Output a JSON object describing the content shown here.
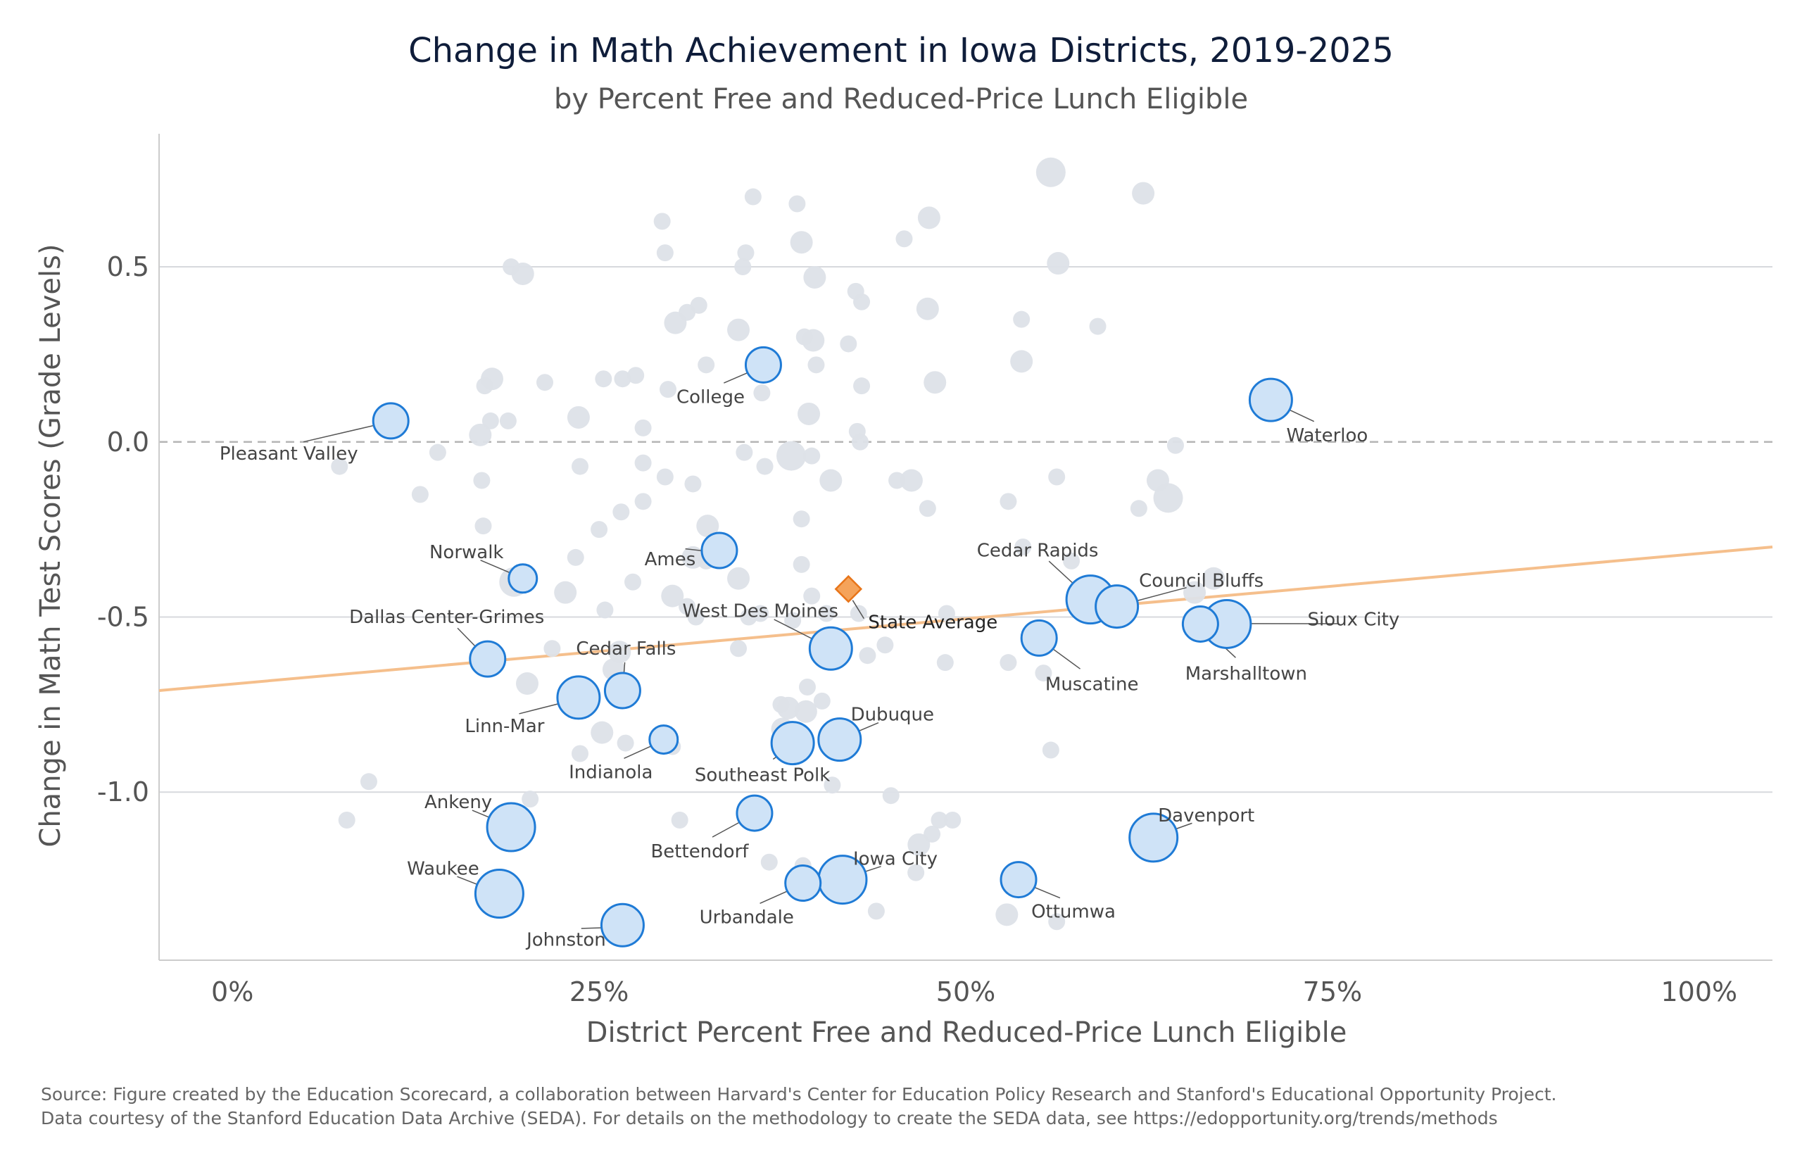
{
  "chart_data": {
    "type": "scatter",
    "title": "Change in Math Achievement in Iowa Districts, 2019-2025",
    "subtitle": "by Percent Free and Reduced-Price Lunch Eligible",
    "xlabel": "District Percent Free and Reduced-Price Lunch Eligible",
    "ylabel": "Change in Math Test Scores (Grade Levels)",
    "xlim": [
      -5,
      105
    ],
    "ylim": [
      -1.48,
      0.88
    ],
    "x_ticks": [
      0,
      25,
      50,
      75,
      100
    ],
    "x_tick_labels": [
      "0%",
      "25%",
      "50%",
      "75%",
      "100%"
    ],
    "y_ticks": [
      -1.0,
      -0.5,
      0.0,
      0.5
    ],
    "y_tick_labels": [
      "-1.0",
      "-0.5",
      "0.0",
      "0.5"
    ],
    "grid": "horizontal",
    "reference_line_y": 0,
    "trend_line": {
      "x": [
        -5,
        105
      ],
      "y": [
        -0.71,
        -0.3
      ]
    },
    "state_average": {
      "label": "State Average",
      "x": 42,
      "y": -0.42
    },
    "highlighted_series": [
      {
        "label": "Pleasant Valley",
        "x": 10.8,
        "y": 0.06,
        "size": 2
      },
      {
        "label": "College",
        "x": 36.2,
        "y": 0.22,
        "size": 2
      },
      {
        "label": "Waterloo",
        "x": 70.8,
        "y": 0.12,
        "size": 3
      },
      {
        "label": "Norwalk",
        "x": 19.8,
        "y": -0.39,
        "size": 1
      },
      {
        "label": "Ames",
        "x": 33.2,
        "y": -0.31,
        "size": 2
      },
      {
        "label": "Cedar Rapids",
        "x": 58.5,
        "y": -0.45,
        "size": 4
      },
      {
        "label": "Council Bluffs",
        "x": 60.3,
        "y": -0.47,
        "size": 3
      },
      {
        "label": "Sioux City",
        "x": 67.8,
        "y": -0.52,
        "size": 4
      },
      {
        "label": "Marshalltown",
        "x": 66.0,
        "y": -0.52,
        "size": 2
      },
      {
        "label": "West Des Moines",
        "x": 40.8,
        "y": -0.59,
        "size": 3
      },
      {
        "label": "Muscatine",
        "x": 55.0,
        "y": -0.56,
        "size": 2
      },
      {
        "label": "Dallas Center-Grimes",
        "x": 17.4,
        "y": -0.62,
        "size": 2
      },
      {
        "label": "Cedar Falls",
        "x": 26.6,
        "y": -0.71,
        "size": 2
      },
      {
        "label": "Linn-Mar",
        "x": 23.6,
        "y": -0.73,
        "size": 3
      },
      {
        "label": "Dubuque",
        "x": 41.4,
        "y": -0.85,
        "size": 3
      },
      {
        "label": "Indianola",
        "x": 29.4,
        "y": -0.85,
        "size": 1
      },
      {
        "label": "Southeast Polk",
        "x": 38.2,
        "y": -0.86,
        "size": 3
      },
      {
        "label": "Ankeny",
        "x": 19.0,
        "y": -1.1,
        "size": 4
      },
      {
        "label": "Bettendorf",
        "x": 35.6,
        "y": -1.06,
        "size": 2
      },
      {
        "label": "Davenport",
        "x": 62.8,
        "y": -1.13,
        "size": 4
      },
      {
        "label": "Iowa City",
        "x": 41.6,
        "y": -1.25,
        "size": 4
      },
      {
        "label": "Waukee",
        "x": 18.2,
        "y": -1.29,
        "size": 4
      },
      {
        "label": "Urbandale",
        "x": 38.9,
        "y": -1.26,
        "size": 2
      },
      {
        "label": "Ottumwa",
        "x": 53.6,
        "y": -1.25,
        "size": 2
      },
      {
        "label": "Johnston",
        "x": 26.6,
        "y": -1.38,
        "size": 3
      }
    ],
    "background_points": [
      [
        35.5,
        0.7,
        1
      ],
      [
        38.5,
        0.68,
        1
      ],
      [
        47.5,
        0.64,
        2
      ],
      [
        55.8,
        0.77,
        3
      ],
      [
        62.1,
        0.71,
        2
      ],
      [
        29.3,
        0.63,
        1
      ],
      [
        29.5,
        0.54,
        1
      ],
      [
        35.0,
        0.54,
        1
      ],
      [
        38.8,
        0.57,
        2
      ],
      [
        45.8,
        0.58,
        1
      ],
      [
        19.0,
        0.5,
        1
      ],
      [
        19.8,
        0.48,
        2
      ],
      [
        34.8,
        0.5,
        1
      ],
      [
        39.7,
        0.47,
        2
      ],
      [
        42.5,
        0.43,
        1
      ],
      [
        42.9,
        0.4,
        1
      ],
      [
        56.3,
        0.51,
        2
      ],
      [
        31.0,
        0.37,
        1
      ],
      [
        30.2,
        0.34,
        2
      ],
      [
        31.8,
        0.39,
        1
      ],
      [
        34.5,
        0.32,
        2
      ],
      [
        39.0,
        0.3,
        1
      ],
      [
        39.6,
        0.29,
        2
      ],
      [
        42.0,
        0.28,
        1
      ],
      [
        47.4,
        0.38,
        2
      ],
      [
        53.8,
        0.35,
        1
      ],
      [
        59.0,
        0.33,
        1
      ],
      [
        39.8,
        0.22,
        1
      ],
      [
        32.3,
        0.22,
        1
      ],
      [
        25.3,
        0.18,
        1
      ],
      [
        26.6,
        0.18,
        1
      ],
      [
        27.5,
        0.19,
        1
      ],
      [
        29.7,
        0.15,
        1
      ],
      [
        21.3,
        0.17,
        1
      ],
      [
        17.7,
        0.18,
        2
      ],
      [
        17.2,
        0.16,
        1
      ],
      [
        42.9,
        0.16,
        1
      ],
      [
        47.9,
        0.17,
        2
      ],
      [
        53.8,
        0.23,
        2
      ],
      [
        17.6,
        0.06,
        1
      ],
      [
        18.8,
        0.06,
        1
      ],
      [
        23.6,
        0.07,
        2
      ],
      [
        28.0,
        0.04,
        1
      ],
      [
        36.1,
        0.14,
        1
      ],
      [
        39.3,
        0.08,
        2
      ],
      [
        42.6,
        0.03,
        1
      ],
      [
        16.9,
        0.02,
        2
      ],
      [
        14.0,
        -0.03,
        1
      ],
      [
        7.3,
        -0.07,
        1
      ],
      [
        17.0,
        -0.11,
        1
      ],
      [
        23.7,
        -0.07,
        1
      ],
      [
        28.0,
        -0.06,
        1
      ],
      [
        29.5,
        -0.1,
        1
      ],
      [
        31.4,
        -0.12,
        1
      ],
      [
        34.9,
        -0.03,
        1
      ],
      [
        36.3,
        -0.07,
        1
      ],
      [
        38.1,
        -0.04,
        3
      ],
      [
        39.5,
        -0.04,
        1
      ],
      [
        40.8,
        -0.11,
        2
      ],
      [
        42.8,
        0.0,
        1
      ],
      [
        45.3,
        -0.11,
        1
      ],
      [
        46.3,
        -0.11,
        2
      ],
      [
        64.3,
        -0.01,
        1
      ],
      [
        12.8,
        -0.15,
        1
      ],
      [
        17.1,
        -0.24,
        1
      ],
      [
        25.0,
        -0.25,
        1
      ],
      [
        26.5,
        -0.2,
        1
      ],
      [
        28.0,
        -0.17,
        1
      ],
      [
        32.4,
        -0.24,
        2
      ],
      [
        38.8,
        -0.22,
        1
      ],
      [
        47.4,
        -0.19,
        1
      ],
      [
        52.9,
        -0.17,
        1
      ],
      [
        61.8,
        -0.19,
        1
      ],
      [
        63.1,
        -0.11,
        2
      ],
      [
        63.8,
        -0.16,
        3
      ],
      [
        53.9,
        -0.3,
        1
      ],
      [
        56.2,
        -0.1,
        1
      ],
      [
        23.4,
        -0.33,
        1
      ],
      [
        19.2,
        -0.4,
        3
      ],
      [
        22.7,
        -0.43,
        2
      ],
      [
        25.4,
        -0.48,
        1
      ],
      [
        27.3,
        -0.4,
        1
      ],
      [
        30.0,
        -0.44,
        2
      ],
      [
        31.4,
        -0.33,
        2
      ],
      [
        32.3,
        -0.34,
        1
      ],
      [
        34.5,
        -0.39,
        2
      ],
      [
        38.8,
        -0.35,
        1
      ],
      [
        39.5,
        -0.44,
        1
      ],
      [
        31.0,
        -0.47,
        1
      ],
      [
        31.6,
        -0.5,
        1
      ],
      [
        35.2,
        -0.5,
        1
      ],
      [
        36.0,
        -0.49,
        1
      ],
      [
        38.2,
        -0.51,
        1
      ],
      [
        40.5,
        -0.49,
        1
      ],
      [
        42.7,
        -0.49,
        1
      ],
      [
        57.2,
        -0.34,
        1
      ],
      [
        48.7,
        -0.49,
        1
      ],
      [
        65.6,
        -0.43,
        2
      ],
      [
        66.9,
        -0.39,
        2
      ],
      [
        21.8,
        -0.59,
        1
      ],
      [
        26.4,
        -0.6,
        2
      ],
      [
        34.5,
        -0.59,
        1
      ],
      [
        26.0,
        -0.65,
        2
      ],
      [
        20.1,
        -0.69,
        2
      ],
      [
        43.3,
        -0.61,
        1
      ],
      [
        44.5,
        -0.58,
        1
      ],
      [
        48.6,
        -0.63,
        1
      ],
      [
        52.9,
        -0.63,
        1
      ],
      [
        55.3,
        -0.66,
        1
      ],
      [
        37.4,
        -0.75,
        1
      ],
      [
        37.9,
        -0.76,
        2
      ],
      [
        39.1,
        -0.77,
        2
      ],
      [
        39.2,
        -0.7,
        1
      ],
      [
        40.2,
        -0.74,
        1
      ],
      [
        37.5,
        -0.82,
        2
      ],
      [
        25.2,
        -0.83,
        2
      ],
      [
        26.8,
        -0.86,
        1
      ],
      [
        23.7,
        -0.89,
        1
      ],
      [
        30.0,
        -0.87,
        1
      ],
      [
        55.8,
        -0.88,
        1
      ],
      [
        9.3,
        -0.97,
        1
      ],
      [
        20.3,
        -1.02,
        1
      ],
      [
        7.8,
        -1.08,
        1
      ],
      [
        30.5,
        -1.08,
        1
      ],
      [
        40.9,
        -0.98,
        1
      ],
      [
        44.9,
        -1.01,
        1
      ],
      [
        48.2,
        -1.08,
        1
      ],
      [
        49.1,
        -1.08,
        1
      ],
      [
        47.7,
        -1.12,
        1
      ],
      [
        46.8,
        -1.15,
        2
      ],
      [
        36.6,
        -1.2,
        1
      ],
      [
        38.9,
        -1.21,
        1
      ],
      [
        46.6,
        -1.23,
        1
      ],
      [
        43.9,
        -1.34,
        1
      ],
      [
        52.8,
        -1.35,
        2
      ],
      [
        56.2,
        -1.37,
        1
      ]
    ],
    "source_lines": [
      "Source: Figure created by the Education Scorecard, a collaboration between Harvard's Center for Education Policy Research and Stanford's Educational Opportunity Project.",
      "Data courtesy of the Stanford Education Data Archive (SEDA). For details on the methodology to create the SEDA data, see https://edopportunity.org/trends/methods"
    ],
    "colors": {
      "highlight_fill": "#cfe3f7",
      "highlight_stroke": "#1f7bd6",
      "background_point": "#dde2e8",
      "trend_line": "#f5bf8c",
      "state_average_fill": "#f5a35a",
      "state_average_stroke": "#e8751a",
      "gridline": "#d7d9dd",
      "zero_line": "#b5b5b5",
      "axis_text": "#555555",
      "label_text": "#444444",
      "leader_line": "#555555"
    }
  }
}
